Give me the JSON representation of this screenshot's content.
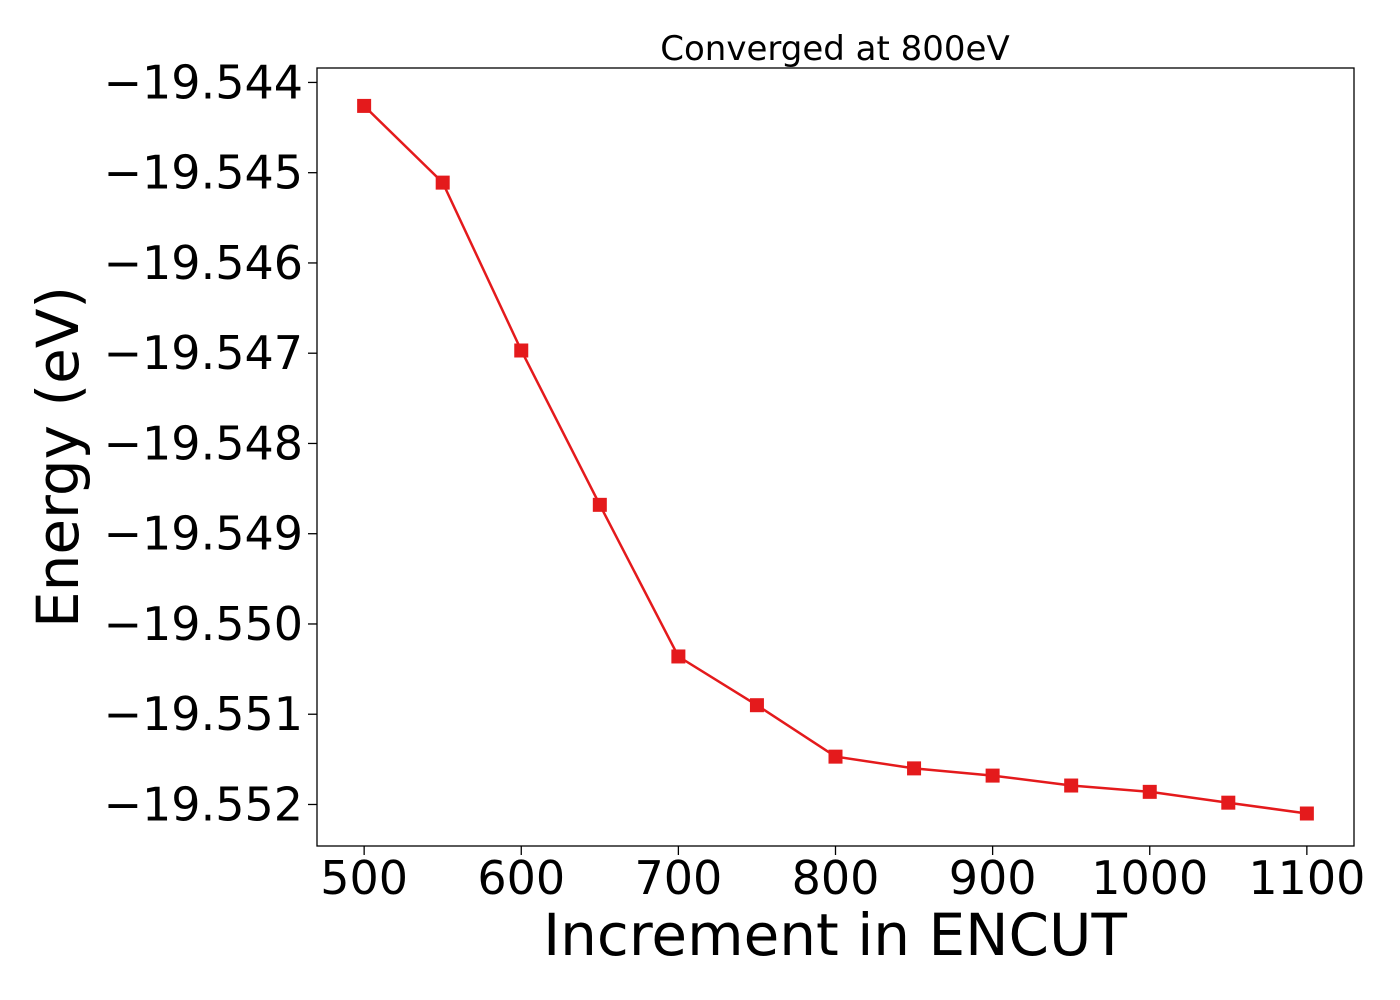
{
  "chart_data": {
    "type": "line",
    "title": "Converged at 800eV",
    "xlabel": "Increment in ENCUT",
    "ylabel": "Energy (eV)",
    "xlim": [
      470,
      1130
    ],
    "ylim": [
      -19.55246,
      -19.54384
    ],
    "x_ticks": [
      500,
      600,
      700,
      800,
      900,
      1000,
      1100
    ],
    "x_tick_labels": [
      "500",
      "600",
      "700",
      "800",
      "900",
      "1000",
      "1100"
    ],
    "y_ticks": [
      -19.544,
      -19.545,
      -19.546,
      -19.547,
      -19.548,
      -19.549,
      -19.55,
      -19.551,
      -19.552
    ],
    "y_tick_labels": [
      "−19.544",
      "−19.545",
      "−19.546",
      "−19.547",
      "−19.548",
      "−19.549",
      "−19.550",
      "−19.551",
      "−19.552"
    ],
    "grid": false,
    "legend": "none",
    "series": [
      {
        "color": "#e41a1c",
        "marker": "square",
        "x": [
          500,
          550,
          600,
          650,
          700,
          750,
          800,
          850,
          900,
          950,
          1000,
          1050,
          1100
        ],
        "y": [
          -19.54426,
          -19.54511,
          -19.54697,
          -19.54868,
          -19.55036,
          -19.5509,
          -19.55147,
          -19.5516,
          -19.55168,
          -19.55179,
          -19.55186,
          -19.55198,
          -19.5521
        ]
      }
    ]
  }
}
